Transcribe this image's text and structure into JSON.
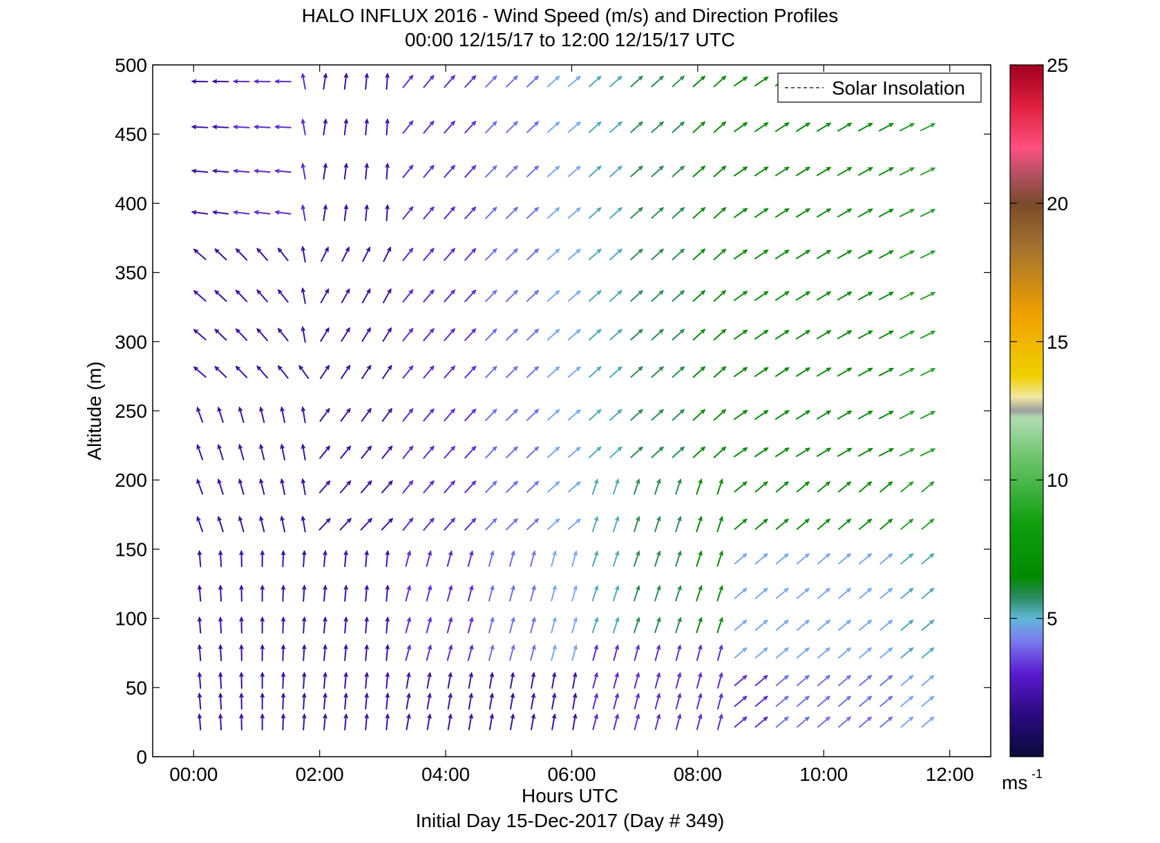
{
  "title_line1": "HALO INFLUX 2016 - Wind Speed (m/s) and Direction Profiles",
  "title_line2": "00:00 12/15/17 to 12:00 12/15/17  UTC",
  "footer": "Initial Day 15-Dec-2017 (Day # 349)",
  "chart_data": {
    "type": "quiver",
    "title": "HALO INFLUX 2016 - Wind Speed (m/s) and Direction Profiles",
    "subtitle": "00:00 12/15/17 to 12:00 12/15/17  UTC",
    "xlabel": "Hours UTC",
    "ylabel": "Altitude (m)",
    "xlim_hours": [
      -0.65,
      12.65
    ],
    "ylim": [
      0,
      500
    ],
    "x_ticks": [
      {
        "value": 0,
        "label": "00:00"
      },
      {
        "value": 2,
        "label": "02:00"
      },
      {
        "value": 4,
        "label": "04:00"
      },
      {
        "value": 6,
        "label": "06:00"
      },
      {
        "value": 8,
        "label": "08:00"
      },
      {
        "value": 10,
        "label": "10:00"
      },
      {
        "value": 12,
        "label": "12:00"
      }
    ],
    "y_ticks": [
      0,
      50,
      100,
      150,
      200,
      250,
      300,
      350,
      400,
      450,
      500
    ],
    "legend": {
      "label": "Solar Insolation",
      "placement": "top-right"
    },
    "colorbar": {
      "range": [
        0,
        25
      ],
      "ticks": [
        5,
        10,
        15,
        20,
        25
      ],
      "unit_label": "ms",
      "unit_exponent": "-1"
    },
    "times_hours": [
      0.1,
      0.43,
      0.76,
      1.09,
      1.42,
      1.75,
      2.08,
      2.41,
      2.74,
      3.07,
      3.4,
      3.73,
      4.06,
      4.39,
      4.72,
      5.05,
      5.38,
      5.71,
      6.04,
      6.37,
      6.7,
      7.03,
      7.36,
      7.69,
      8.02,
      8.35,
      8.68,
      9.01,
      9.34,
      9.67,
      10.0,
      10.33,
      10.66,
      10.99,
      11.32,
      11.65
    ],
    "altitudes_m": [
      25,
      40,
      55,
      75,
      95,
      118,
      143,
      168,
      195,
      220,
      247,
      278,
      305,
      333,
      363,
      393,
      423,
      455,
      488
    ],
    "note_wind_field": "Arrow direction and speed (m/s) per altitude/time; estimated from the figure"
  }
}
